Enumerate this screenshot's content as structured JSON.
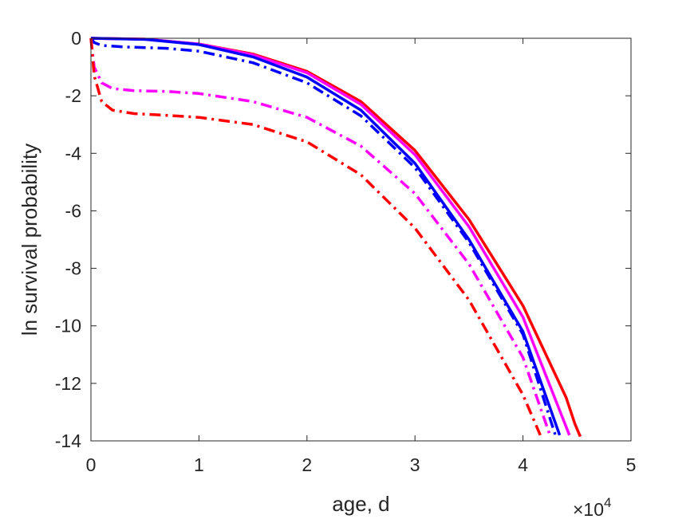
{
  "chart_data": {
    "type": "line",
    "xlabel": "age, d",
    "ylabel": "ln survival probability",
    "x_multiplier_label": {
      "base": "×10",
      "exponent": "4"
    },
    "xlim": [
      0,
      50000
    ],
    "ylim": [
      -14,
      0
    ],
    "xticks": [
      0,
      10000,
      20000,
      30000,
      40000,
      50000
    ],
    "xtick_labels": [
      "0",
      "1",
      "2",
      "3",
      "4",
      "5"
    ],
    "yticks": [
      0,
      -2,
      -4,
      -6,
      -8,
      -10,
      -12,
      -14
    ],
    "ytick_labels": [
      "0",
      "-2",
      "-4",
      "-6",
      "-8",
      "-10",
      "-12",
      "-14"
    ],
    "grid": false,
    "legend": "none",
    "series": [
      {
        "color": "#ff0000",
        "style": "solid",
        "x": [
          0,
          5000,
          10000,
          15000,
          20000,
          25000,
          30000,
          35000,
          40000,
          44000,
          44800,
          45300
        ],
        "y": [
          0,
          -0.03,
          -0.2,
          -0.55,
          -1.15,
          -2.2,
          -3.9,
          -6.3,
          -9.3,
          -12.5,
          -13.4,
          -13.85
        ]
      },
      {
        "color": "#ff00ff",
        "style": "solid",
        "x": [
          0,
          5000,
          10000,
          15000,
          20000,
          25000,
          30000,
          35000,
          40000,
          44300
        ],
        "y": [
          0,
          -0.03,
          -0.2,
          -0.58,
          -1.2,
          -2.3,
          -4.05,
          -6.55,
          -9.7,
          -13.8
        ]
      },
      {
        "color": "#0000ff",
        "style": "solid",
        "x": [
          0,
          5000,
          10000,
          15000,
          20000,
          25000,
          30000,
          35000,
          40000,
          43400
        ],
        "y": [
          0,
          -0.04,
          -0.22,
          -0.65,
          -1.35,
          -2.5,
          -4.35,
          -7.0,
          -10.2,
          -13.8
        ]
      },
      {
        "color": "#0000ff",
        "style": "dashdot",
        "x": [
          0,
          300,
          1000,
          3000,
          7000,
          10000,
          15000,
          20000,
          25000,
          30000,
          35000,
          40000,
          43000
        ],
        "y": [
          0,
          -0.15,
          -0.25,
          -0.3,
          -0.35,
          -0.45,
          -0.85,
          -1.55,
          -2.7,
          -4.5,
          -7.1,
          -10.3,
          -13.8
        ]
      },
      {
        "color": "#ff00ff",
        "style": "dashdot",
        "x": [
          0,
          300,
          1000,
          2000,
          4000,
          7000,
          10000,
          15000,
          20000,
          25000,
          30000,
          35000,
          40000,
          42500
        ],
        "y": [
          0,
          -1.0,
          -1.55,
          -1.75,
          -1.82,
          -1.85,
          -1.92,
          -2.2,
          -2.75,
          -3.75,
          -5.4,
          -7.85,
          -11.1,
          -13.8
        ]
      },
      {
        "color": "#ff0000",
        "style": "dashdot",
        "x": [
          0,
          300,
          1000,
          2000,
          4000,
          7000,
          10000,
          15000,
          20000,
          25000,
          30000,
          35000,
          40000,
          41600
        ],
        "y": [
          0,
          -1.3,
          -2.2,
          -2.5,
          -2.62,
          -2.68,
          -2.75,
          -3.0,
          -3.6,
          -4.75,
          -6.6,
          -9.1,
          -12.4,
          -13.8
        ]
      }
    ]
  }
}
